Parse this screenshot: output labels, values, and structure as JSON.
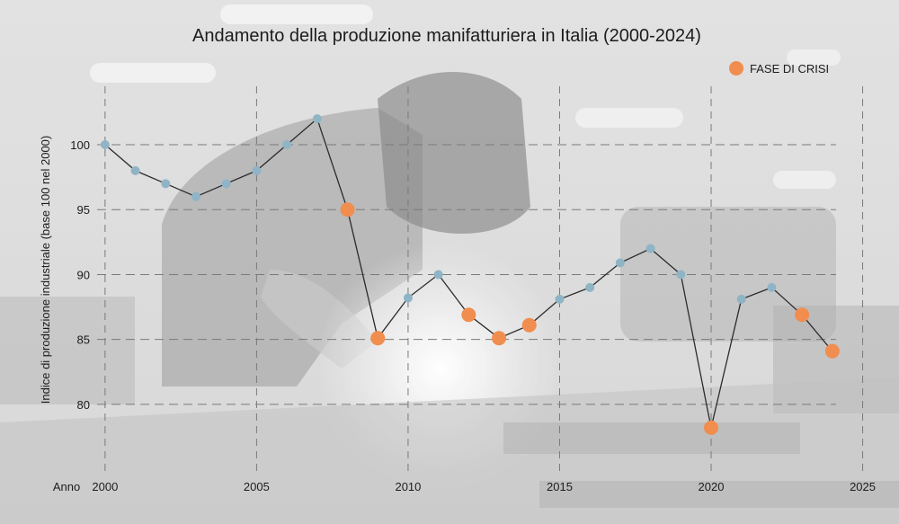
{
  "colors": {
    "background": "#e3e3e3",
    "normal_point": "#8fb4c6",
    "crisis_point": "#f18d4e",
    "line": "#2b2b2b",
    "grid": "#7a7a7a"
  },
  "chart_data": {
    "type": "line",
    "title": "Andamento della produzione manifatturiera in Italia (2000-2024)",
    "ylabel": "Indice di produzione industriale (base 100 nel 2000)",
    "xlabel": "Anno",
    "x_ticks": [
      2000,
      2005,
      2010,
      2015,
      2020,
      2025
    ],
    "y_ticks": [
      80,
      85,
      90,
      95,
      100
    ],
    "xlim": [
      1999.5,
      2026.2
    ],
    "ylim": [
      74.8,
      104.5
    ],
    "grid": true,
    "legend": {
      "position": "top-right",
      "entries": [
        {
          "label": "FASE DI CRISI",
          "color": "#f18d4e"
        }
      ]
    },
    "series": [
      {
        "x": [
          2000,
          2001,
          2002,
          2003,
          2004,
          2005,
          2006,
          2007,
          2008,
          2009,
          2010,
          2011,
          2012,
          2013,
          2014,
          2015,
          2016,
          2017,
          2018,
          2019,
          2020,
          2021,
          2022,
          2023,
          2024
        ],
        "values": [
          100,
          98,
          97,
          96,
          97,
          98,
          100,
          102,
          95,
          85.1,
          88.2,
          90,
          86.9,
          85.1,
          86.1,
          88.1,
          89,
          90.9,
          92,
          90,
          78.2,
          88.1,
          89,
          86.9,
          84.1
        ],
        "crisis": [
          false,
          false,
          false,
          false,
          false,
          false,
          false,
          false,
          true,
          true,
          false,
          false,
          true,
          true,
          true,
          false,
          false,
          false,
          false,
          false,
          true,
          false,
          false,
          true,
          true
        ]
      }
    ]
  }
}
